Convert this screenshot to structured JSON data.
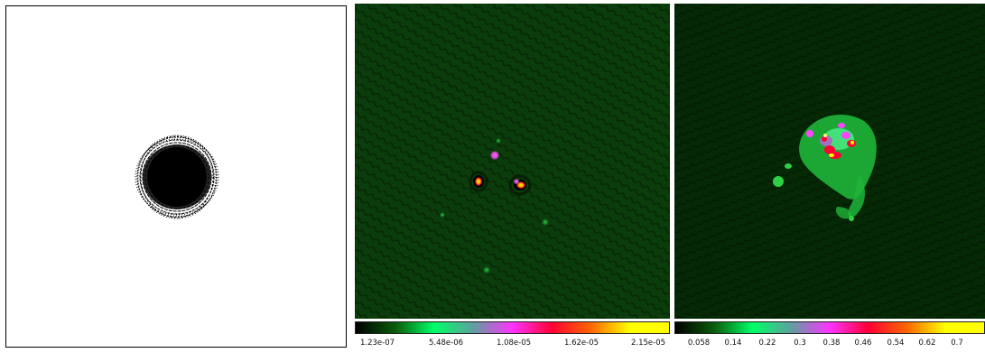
{
  "panels": {
    "uv_coverage": {
      "icon": "uv-coverage-plot",
      "fill": "#000000",
      "background": "#ffffff"
    },
    "dirty_image": {
      "icon": "dirty-image-map",
      "background": "#0a3a0a"
    },
    "model_image": {
      "icon": "model-image-map",
      "background": "#052805"
    }
  },
  "colorbars": {
    "dirty": {
      "gradient": [
        "#000000",
        "#0a5a0a",
        "#00ff66",
        "#5f9fa0",
        "#ff33ff",
        "#ff0033",
        "#ff6600",
        "#ffff00",
        "#ffff00"
      ],
      "ticks": [
        "1.23e-07",
        "5.48e-06",
        "1.08e-05",
        "1.62e-05",
        "2.15e-05"
      ]
    },
    "model": {
      "gradient": [
        "#000000",
        "#0a5a0a",
        "#00ff66",
        "#5f9fa0",
        "#ff33ff",
        "#ff0033",
        "#ff6600",
        "#ffff00",
        "#ffff00"
      ],
      "ticks": [
        "0.058",
        "0.14",
        "0.22",
        "0.3",
        "0.38",
        "0.46",
        "0.54",
        "0.62",
        "0.7"
      ]
    }
  }
}
